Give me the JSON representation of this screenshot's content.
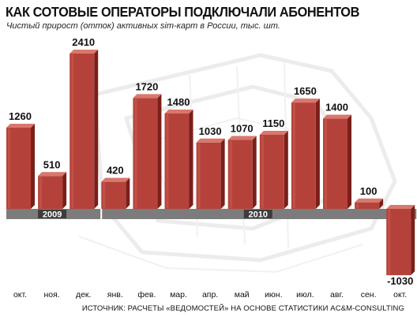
{
  "header": {
    "title": "КАК СОТОВЫЕ ОПЕРАТОРЫ ПОДКЛЮЧАЛИ АБОНЕНТОВ",
    "subtitle": "Чистый прирост (отток) активных sim-карт в России, тыс. шт."
  },
  "footer": {
    "source": "ИСТОЧНИК: РАСЧЕТЫ «ВЕДОМОСТЕЙ» НА ОСНОВЕ СТАТИСТИКИ AC&M-CONSULTING"
  },
  "colors": {
    "bar_front": "#b5423a",
    "bar_side": "#7a1f19",
    "bar_top": "#d9776d",
    "band": "#7c7c7c",
    "year_label_bg": "#3c3c3c",
    "text": "#111111"
  },
  "chart_data": {
    "type": "bar",
    "categories": [
      "окт.",
      "ноя.",
      "дек.",
      "янв.",
      "фев.",
      "мар.",
      "апр.",
      "май",
      "июн.",
      "июл.",
      "авг.",
      "сен.",
      "окт."
    ],
    "values": [
      1260,
      510,
      2410,
      420,
      1720,
      1480,
      1030,
      1070,
      1150,
      1650,
      1400,
      100,
      -1030
    ],
    "value_labels": [
      "1260",
      "510",
      "2410",
      "420",
      "1720",
      "1480",
      "1030",
      "1070",
      "1150",
      "1650",
      "1400",
      "100",
      "-1030"
    ],
    "year_groups": [
      {
        "label": "2009",
        "first": 0,
        "last": 2
      },
      {
        "label": "2010",
        "first": 3,
        "last": 12
      }
    ],
    "title": "КАК СОТОВЫЕ ОПЕРАТОРЫ ПОДКЛЮЧАЛИ АБОНЕНТОВ",
    "xlabel": "",
    "ylabel": "",
    "ylim": [
      -1030,
      2410
    ],
    "grid": false,
    "legend": "none"
  }
}
